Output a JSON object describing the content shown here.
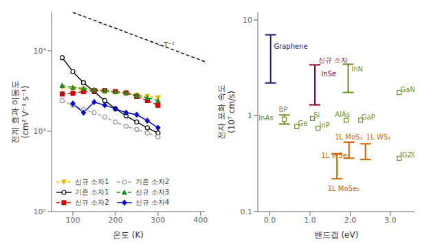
{
  "chart_data": [
    {
      "type": "line",
      "x_label": "온도 (K)",
      "y_label": "전계 효과 이동도\n(cm² V⁻¹ s⁻¹)",
      "log": "y",
      "xlim": [
        50,
        410
      ],
      "ylim": [
        100,
        30000
      ],
      "xticks": [
        100,
        200,
        300,
        400
      ],
      "yticks": [
        {
          "value": 100,
          "label": "10²"
        },
        {
          "value": 1000,
          "label": "10³"
        },
        {
          "value": 10000,
          "label": "10⁴"
        }
      ],
      "grid": false,
      "legend": "lower left",
      "series": [
        {
          "color": "#000000",
          "marker": "none",
          "line_style": "dashed",
          "x": [
            100,
            410
          ],
          "values": [
            30000,
            7317.073170731707
          ]
        },
        {
          "name": "신규 소자1",
          "color": "#E8B800",
          "marker": "triangle_down",
          "line_style": "dashed",
          "x": [
            75,
            100,
            125,
            150,
            175,
            200,
            225,
            250,
            275,
            300
          ],
          "values": [
            3500,
            3400,
            3300,
            3200,
            3100,
            3000,
            2900,
            2800,
            2700,
            2600
          ]
        },
        {
          "name": "기존 소자1",
          "color": "#000000",
          "marker": "open_circle",
          "line_style": "solid",
          "x": [
            75,
            100,
            125,
            150,
            175,
            200,
            225,
            250,
            275,
            300
          ],
          "values": [
            8200,
            5500,
            4000,
            3100,
            2400,
            1900,
            1550,
            1300,
            1100,
            950
          ]
        },
        {
          "name": "신규 소자2",
          "color": "#CC0000",
          "marker": "square",
          "line_style": "dashed",
          "x": [
            75,
            100,
            125,
            150,
            175,
            200,
            225,
            250,
            275,
            300
          ],
          "values": [
            2900,
            2950,
            3100,
            3200,
            3200,
            3100,
            3000,
            2700,
            2400,
            2100
          ]
        },
        {
          "name": "기존 소자2",
          "color": "#999999",
          "marker": "open_circle",
          "line_style": "dashed",
          "x": [
            75,
            100,
            125,
            150,
            175,
            200,
            225,
            250,
            275,
            300
          ],
          "values": [
            2400,
            2100,
            1850,
            1700,
            1500,
            1300,
            1150,
            1050,
            950,
            850
          ]
        },
        {
          "name": "신규 소자3",
          "color": "#228B22",
          "marker": "triangle_up",
          "line_style": "dashed",
          "x": [
            75,
            100,
            125,
            150,
            175,
            200,
            225,
            250,
            275,
            300
          ],
          "values": [
            3700,
            3500,
            3400,
            3300,
            3200,
            3100,
            3000,
            2800,
            2600,
            2400
          ]
        },
        {
          "name": "신규 소자4",
          "color": "#0000CC",
          "marker": "diamond",
          "line_style": "solid",
          "x": [
            100,
            125,
            150,
            175,
            200,
            225,
            250,
            275,
            300
          ],
          "values": [
            2200,
            1700,
            2300,
            2100,
            1900,
            1700,
            1600,
            1350,
            1100
          ]
        }
      ],
      "annotations": [
        {
          "text": "∼T⁻¹",
          "x": 300,
          "y": 11000
        }
      ]
    },
    {
      "type": "scatter",
      "x_label": "밴드갭 (eV)",
      "y_label": "전자 포화 속도\n(10⁷ cm/s)",
      "log": "y",
      "xlim": [
        -0.3,
        3.6
      ],
      "ylim": [
        0.1,
        12
      ],
      "xticks": [
        {
          "value": 0,
          "label": "0.0"
        },
        {
          "value": 1,
          "label": "1.0"
        },
        {
          "value": 2,
          "label": "2.0"
        },
        {
          "value": 3,
          "label": "3.0"
        }
      ],
      "yticks": [
        0.1,
        1,
        10
      ],
      "grid": false,
      "series": [
        {
          "x": [
            0.02
          ],
          "values": [
            4.5
          ],
          "error": [
            [
              2.3,
              2.5
            ]
          ],
          "color": "#1c2580",
          "marker": "none"
        },
        {
          "x": [
            1.12
          ],
          "values": [
            2.5
          ],
          "error": [
            [
              1.2,
              0.9
            ]
          ],
          "color": "#8B0030",
          "marker": "none"
        },
        {
          "x": [
            1.95
          ],
          "values": [
            2.6
          ],
          "error": [
            [
              0.85,
              0.85
            ]
          ],
          "color": "#6B8E23",
          "marker": "none"
        },
        {
          "x": [
            3.22
          ],
          "values": [
            1.75
          ],
          "color": "#6B8E23",
          "marker": "open_square"
        },
        {
          "x": [
            0.36
          ],
          "values": [
            0.92
          ],
          "error": [
            [
              0.1,
              0.1
            ]
          ],
          "color": "#6B8E23",
          "marker": "open_square"
        },
        {
          "x": [
            0.67
          ],
          "values": [
            0.77
          ],
          "color": "#6B8E23",
          "marker": "open_square"
        },
        {
          "x": [
            1.06
          ],
          "values": [
            0.94
          ],
          "color": "#6B8E23",
          "marker": "open_square"
        },
        {
          "x": [
            1.2
          ],
          "values": [
            0.74
          ],
          "color": "#6B8E23",
          "marker": "open_square"
        },
        {
          "x": [
            1.9
          ],
          "values": [
            0.9
          ],
          "color": "#6B8E23",
          "marker": "open_square"
        },
        {
          "x": [
            2.26
          ],
          "values": [
            0.9
          ],
          "color": "#6B8E23",
          "marker": "open_square"
        },
        {
          "x": [
            1.97
          ],
          "values": [
            0.43
          ],
          "error": [
            [
              0.07,
              0.1
            ]
          ],
          "color": "#CC6600",
          "marker": "none"
        },
        {
          "x": [
            2.38
          ],
          "values": [
            0.43
          ],
          "error": [
            [
              0.08,
              0.08
            ]
          ],
          "color": "#CC6600",
          "marker": "none"
        },
        {
          "x": [
            1.67
          ],
          "values": [
            0.32
          ],
          "error": [
            [
              0.1,
              0.08
            ]
          ],
          "color": "#CC6600",
          "marker": "none"
        },
        {
          "x": [
            3.22
          ],
          "values": [
            0.36
          ],
          "color": "#6B8E23",
          "marker": "open_square"
        }
      ],
      "annotations": [
        {
          "text": "Graphene",
          "x": 0.1,
          "y": 5.0,
          "color": "#1c2580"
        },
        {
          "text": "신규 소자",
          "x": 1.2,
          "y": 3.6,
          "color": "#8B0030"
        },
        {
          "text": "InSe",
          "x": 1.28,
          "y": 2.6,
          "color": "#8B0030"
        },
        {
          "text": "InN",
          "x": 2.03,
          "y": 2.9,
          "color": "#6B8E23"
        },
        {
          "text": "GaN",
          "x": 3.25,
          "y": 1.78,
          "color": "#6B8E23"
        },
        {
          "text": "InAs",
          "x": -0.28,
          "y": 0.9,
          "color": "#6B8E23"
        },
        {
          "text": "BP",
          "x": 0.22,
          "y": 1.1,
          "color": "#808080"
        },
        {
          "text": "Ge",
          "x": 0.7,
          "y": 0.79,
          "color": "#6B8E23"
        },
        {
          "text": "Si",
          "x": 1.09,
          "y": 0.96,
          "color": "#6B8E23"
        },
        {
          "text": "InP",
          "x": 1.23,
          "y": 0.75,
          "color": "#6B8E23"
        },
        {
          "text": "AlAs",
          "x": 1.62,
          "y": 0.97,
          "color": "#6B8E23"
        },
        {
          "text": "GaP",
          "x": 2.28,
          "y": 0.92,
          "color": "#6B8E23"
        },
        {
          "text": "1L MoS₂",
          "x": 1.62,
          "y": 0.57,
          "color": "#CC6600"
        },
        {
          "text": "1L WS₂",
          "x": 2.4,
          "y": 0.57,
          "color": "#CC6600"
        },
        {
          "text": "1L WSe₂",
          "x": 1.28,
          "y": 0.36,
          "color": "#CC6600"
        },
        {
          "text": "1L MoSe₂",
          "x": 1.44,
          "y": 0.165,
          "color": "#CC6600"
        },
        {
          "text": "IGZO",
          "x": 3.24,
          "y": 0.37,
          "color": "#6B8E23"
        }
      ]
    }
  ]
}
